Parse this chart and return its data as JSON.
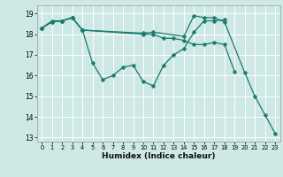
{
  "title": "",
  "xlabel": "Humidex (Indice chaleur)",
  "xlim": [
    -0.5,
    23.5
  ],
  "ylim": [
    12.8,
    19.4
  ],
  "yticks": [
    13,
    14,
    15,
    16,
    17,
    18,
    19
  ],
  "xticks": [
    0,
    1,
    2,
    3,
    4,
    5,
    6,
    7,
    8,
    9,
    10,
    11,
    12,
    13,
    14,
    15,
    16,
    17,
    18,
    19,
    20,
    21,
    22,
    23
  ],
  "bg_color": "#cde8e5",
  "grid_color": "#ffffff",
  "line_color": "#1a7a6e",
  "series": [
    {
      "x": [
        0,
        1,
        2,
        3,
        4,
        5,
        6,
        7,
        8,
        9,
        10,
        11,
        12,
        13,
        14,
        15,
        16,
        17,
        18
      ],
      "y": [
        18.3,
        18.6,
        18.65,
        18.8,
        18.2,
        16.6,
        15.8,
        16.0,
        16.4,
        16.5,
        15.7,
        15.5,
        16.5,
        17.0,
        17.3,
        18.1,
        18.65,
        18.65,
        18.7
      ]
    },
    {
      "x": [
        0,
        1,
        2,
        3,
        4,
        10,
        11,
        12,
        13,
        14,
        15,
        16,
        17,
        18,
        19
      ],
      "y": [
        18.3,
        18.6,
        18.65,
        18.8,
        18.2,
        18.0,
        18.0,
        17.8,
        17.8,
        17.7,
        17.5,
        17.5,
        17.6,
        17.5,
        16.2
      ]
    },
    {
      "x": [
        0,
        1,
        2,
        3,
        4,
        10,
        11,
        14,
        15,
        16,
        17,
        18,
        20,
        21,
        22,
        23
      ],
      "y": [
        18.3,
        18.65,
        18.65,
        18.8,
        18.2,
        18.05,
        18.1,
        17.9,
        18.9,
        18.8,
        18.8,
        18.6,
        16.15,
        15.0,
        14.1,
        13.2
      ]
    }
  ]
}
